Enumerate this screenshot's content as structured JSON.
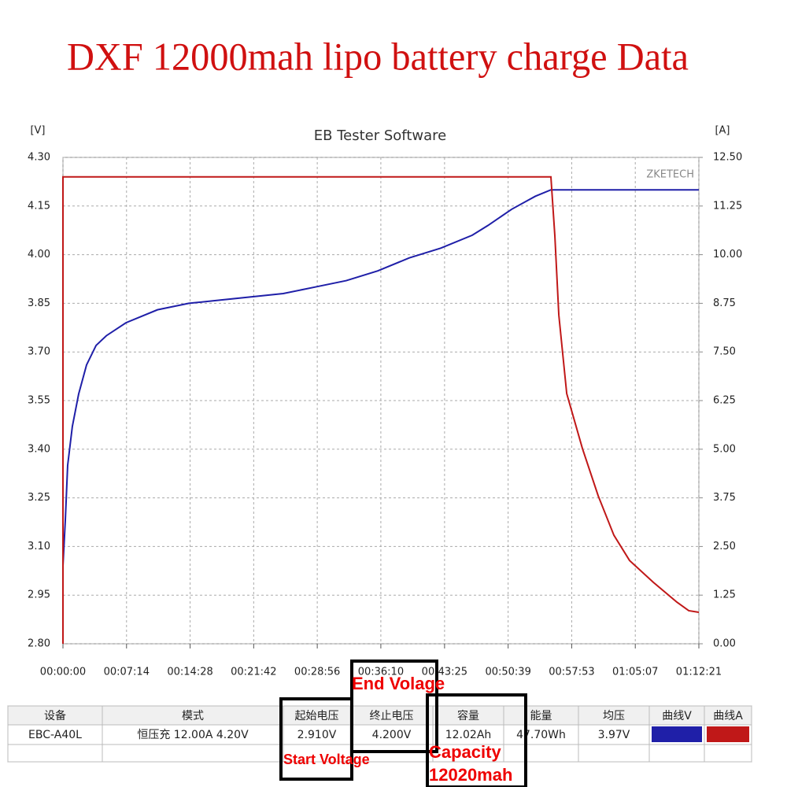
{
  "heading": "DXF 12000mah lipo battery charge Data",
  "chart_data": {
    "type": "line",
    "title": "EB Tester Software",
    "watermark": "ZKETECH",
    "ylabel": "[V]",
    "y2label": "[A]",
    "xlim": [
      0,
      4341
    ],
    "xticks": [
      {
        "value": 0,
        "label": "00:00:00"
      },
      {
        "value": 434,
        "label": "00:07:14"
      },
      {
        "value": 868,
        "label": "00:14:28"
      },
      {
        "value": 1302,
        "label": "00:21:42"
      },
      {
        "value": 1736,
        "label": "00:28:56"
      },
      {
        "value": 2170,
        "label": "00:36:10"
      },
      {
        "value": 2605,
        "label": "00:43:25"
      },
      {
        "value": 3039,
        "label": "00:50:39"
      },
      {
        "value": 3473,
        "label": "00:57:53"
      },
      {
        "value": 3907,
        "label": "01:05:07"
      },
      {
        "value": 4341,
        "label": "01:12:21"
      }
    ],
    "ylim": [
      2.8,
      4.3
    ],
    "yticks": [
      {
        "value": 2.8,
        "label": "2.80"
      },
      2.95,
      {
        "value": 3.1,
        "label": "3.10"
      },
      3.25,
      {
        "value": 3.4,
        "label": "3.40"
      },
      3.55,
      {
        "value": 3.7,
        "label": "3.70"
      },
      3.85,
      {
        "value": 4.0,
        "label": "4.00"
      },
      4.15,
      {
        "value": 4.3,
        "label": "4.30"
      }
    ],
    "y2lim": [
      0,
      12.5
    ],
    "y2ticks": [
      {
        "value": 0,
        "label": "0.00"
      },
      1.25,
      {
        "value": 2.5,
        "label": "2.50"
      },
      3.75,
      {
        "value": 5,
        "label": "5.00"
      },
      6.25,
      {
        "value": 7.5,
        "label": "7.50"
      },
      8.75,
      {
        "value": 10,
        "label": "10.00"
      },
      11.25,
      {
        "value": 12.5,
        "label": "12.50"
      }
    ],
    "grid": true,
    "series": [
      {
        "name": "曲线V",
        "color": "#1f1fa8",
        "x": [
          0,
          16,
          32,
          64,
          107,
          161,
          226,
          296,
          430,
          645,
          860,
          1075,
          1290,
          1504,
          1719,
          1934,
          2149,
          2364,
          2579,
          2794,
          2901,
          3063,
          3224,
          3331,
          4341
        ],
        "values": [
          3.04,
          3.18,
          3.35,
          3.47,
          3.57,
          3.66,
          3.72,
          3.75,
          3.79,
          3.83,
          3.85,
          3.86,
          3.87,
          3.88,
          3.9,
          3.92,
          3.95,
          3.99,
          4.02,
          4.06,
          4.09,
          4.14,
          4.18,
          4.2,
          4.2
        ]
      },
      {
        "name": "曲线A",
        "color": "#c01818",
        "axis": "y2",
        "x": [
          0,
          0,
          3331,
          3358,
          3385,
          3439,
          3546,
          3654,
          3761,
          3868,
          4030,
          4191,
          4272,
          4341
        ],
        "values": [
          0,
          12.0,
          12.0,
          10.48,
          8.45,
          6.43,
          5.02,
          3.8,
          2.79,
          2.14,
          1.58,
          1.07,
          0.85,
          0.81
        ]
      }
    ]
  },
  "table": {
    "header": [
      "设备",
      "模式",
      "起始电压",
      "终止电压",
      "容量",
      "能量",
      "均压",
      "曲线V",
      "曲线A"
    ],
    "rows": [
      [
        "EBC-A40L",
        "恒压充 12.00A 4.20V",
        "2.910V",
        "4.200V",
        "12.02Ah",
        "47.70Wh",
        "3.97V"
      ]
    ]
  },
  "annotations": [
    "End Volage",
    "Start Voltage",
    "Capacity",
    "12020mah"
  ]
}
